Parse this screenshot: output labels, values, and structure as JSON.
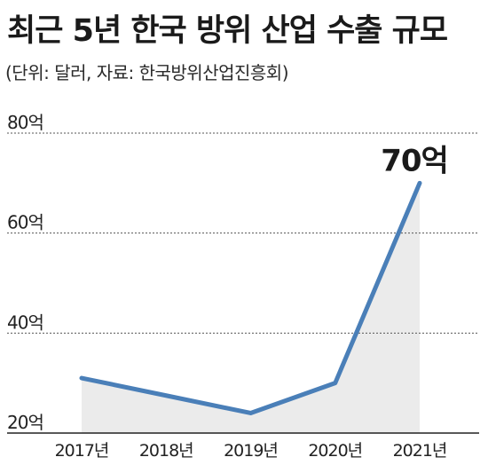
{
  "header": {
    "title": "최근 5년 한국 방위 산업 수출 규모",
    "source": "(단위: 달러, 자료: 한국방위산업진흥회)"
  },
  "chart_data": {
    "type": "area",
    "title": "최근 5년 한국 방위 산업 수출 규모",
    "unit": "단위: 달러",
    "source": "자료: 한국방위산업진흥회",
    "categories": [
      "2017년",
      "2018년",
      "2019년",
      "2020년",
      "2021년"
    ],
    "series": [
      {
        "values": [
          31,
          27.5,
          24,
          30,
          70
        ]
      }
    ],
    "ylim": [
      20,
      80
    ],
    "yticks": [
      20,
      40,
      60,
      80
    ],
    "ytick_labels": [
      "20억",
      "40억",
      "60억",
      "80억"
    ],
    "grid": "dashed-horizontal",
    "annotation": {
      "category": "2021년",
      "text": "70억"
    },
    "colors": {
      "line": "#4a7fb8",
      "fill": "#ebebeb",
      "grid": "#555555"
    }
  }
}
